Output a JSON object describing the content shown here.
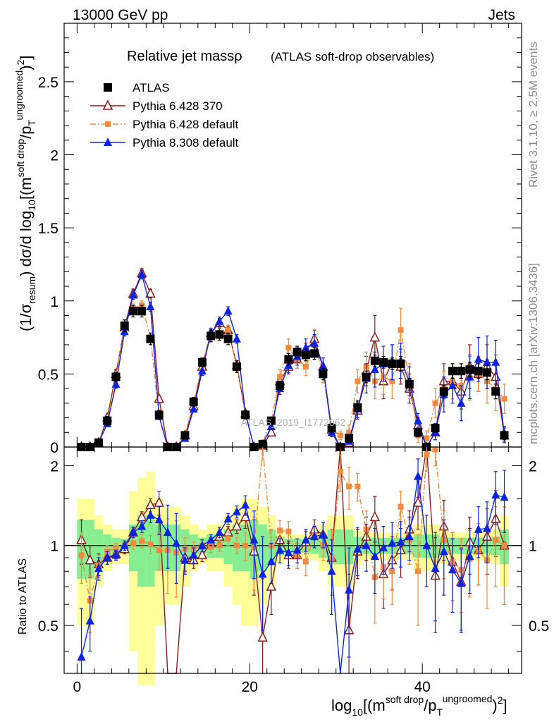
{
  "header": {
    "left": "13000 GeV pp",
    "right": "Jets"
  },
  "side": {
    "rivet": "Rivet 3.1.10, ≥ 2.5M events",
    "mcplots": "mcplots.cern.ch [arXiv:1306.3436]"
  },
  "watermark": "ATLAS_2019_I1772062",
  "chart_data": [
    {
      "type": "line",
      "title": "Relative jet massρ",
      "subtitle": "(ATLAS soft-drop observables)",
      "ylabel": "(1/σresum) dσ/d log10[(m soft drop/pT ungroomed)2]",
      "xlim": [
        -1.5,
        51.5
      ],
      "ylim": [
        0,
        2.9
      ],
      "yticks": [
        0,
        0.5,
        1,
        1.5,
        2,
        2.5
      ],
      "ytick_labels": [
        "0",
        "0.5",
        "1",
        "1.5",
        "2",
        "2.5"
      ],
      "legend_position": "top-left",
      "x": [
        0.5,
        1.5,
        2.5,
        3.5,
        4.5,
        5.5,
        6.5,
        7.5,
        8.5,
        9.5,
        10.5,
        11.5,
        12.5,
        13.5,
        14.5,
        15.5,
        16.5,
        17.5,
        18.5,
        19.5,
        20.5,
        21.5,
        22.5,
        23.5,
        24.5,
        25.5,
        26.5,
        27.5,
        28.5,
        29.5,
        30.5,
        31.5,
        32.5,
        33.5,
        34.5,
        35.5,
        36.5,
        37.5,
        38.5,
        39.5,
        40.5,
        41.5,
        42.5,
        43.5,
        44.5,
        45.5,
        46.5,
        47.5,
        48.5,
        49.5
      ],
      "series": [
        {
          "name": "ATLAS",
          "color": "#000000",
          "marker": "square",
          "values": [
            0.0,
            0.0,
            0.03,
            0.18,
            0.48,
            0.83,
            0.93,
            0.93,
            0.74,
            0.22,
            0.0,
            0.0,
            0.08,
            0.31,
            0.58,
            0.76,
            0.77,
            0.74,
            0.55,
            0.22,
            0.0,
            0.02,
            0.18,
            0.42,
            0.6,
            0.65,
            0.63,
            0.64,
            0.5,
            0.13,
            0.0,
            0.06,
            0.27,
            0.48,
            0.59,
            0.58,
            0.57,
            0.57,
            0.43,
            0.1,
            0.0,
            0.13,
            0.38,
            0.52,
            0.52,
            0.53,
            0.52,
            0.51,
            0.38,
            0.08
          ],
          "errors": [
            0.01,
            0.01,
            0.02,
            0.03,
            0.03,
            0.04,
            0.04,
            0.04,
            0.04,
            0.03,
            0.01,
            0.01,
            0.02,
            0.03,
            0.03,
            0.04,
            0.04,
            0.04,
            0.04,
            0.03,
            0.01,
            0.01,
            0.02,
            0.03,
            0.04,
            0.04,
            0.04,
            0.04,
            0.04,
            0.03,
            0.01,
            0.02,
            0.03,
            0.04,
            0.04,
            0.04,
            0.04,
            0.05,
            0.04,
            0.03,
            0.01,
            0.03,
            0.04,
            0.05,
            0.05,
            0.05,
            0.05,
            0.05,
            0.05,
            0.03
          ]
        },
        {
          "name": "Pythia 6.428 370",
          "color": "#8b1a1a",
          "marker": "open-triangle",
          "values": [
            0.0,
            0.0,
            0.03,
            0.2,
            0.5,
            0.82,
            1.05,
            1.19,
            1.05,
            0.33,
            0.0,
            0.0,
            0.08,
            0.28,
            0.55,
            0.78,
            0.85,
            0.8,
            0.56,
            0.23,
            0.0,
            0.01,
            0.1,
            0.45,
            0.55,
            0.6,
            0.65,
            0.74,
            0.55,
            0.12,
            0.0,
            0.03,
            0.25,
            0.52,
            0.75,
            0.45,
            0.58,
            0.55,
            0.4,
            0.15,
            0.0,
            0.1,
            0.45,
            0.45,
            0.38,
            0.55,
            0.5,
            0.55,
            0.48,
            0.08
          ],
          "errors": [
            0.005,
            0.005,
            0.01,
            0.02,
            0.03,
            0.03,
            0.03,
            0.03,
            0.03,
            0.02,
            0.005,
            0.005,
            0.01,
            0.02,
            0.03,
            0.03,
            0.03,
            0.03,
            0.03,
            0.02,
            0.005,
            0.005,
            0.02,
            0.04,
            0.05,
            0.06,
            0.06,
            0.06,
            0.06,
            0.03,
            0.01,
            0.02,
            0.06,
            0.1,
            0.15,
            0.12,
            0.12,
            0.12,
            0.1,
            0.05,
            0.01,
            0.05,
            0.12,
            0.12,
            0.12,
            0.15,
            0.12,
            0.15,
            0.15,
            0.05
          ]
        },
        {
          "name": "Pythia 6.428 default",
          "color": "#f28c3c",
          "marker": "square",
          "values": [
            0.0,
            0.0,
            0.03,
            0.18,
            0.48,
            0.84,
            0.95,
            0.97,
            0.75,
            0.21,
            0.0,
            0.0,
            0.08,
            0.3,
            0.58,
            0.75,
            0.77,
            0.8,
            0.55,
            0.22,
            0.0,
            0.03,
            0.18,
            0.48,
            0.68,
            0.6,
            0.55,
            0.7,
            0.5,
            0.12,
            0.08,
            0.1,
            0.45,
            0.55,
            0.45,
            0.48,
            0.45,
            0.8,
            0.45,
            0.08,
            0.06,
            0.3,
            0.4,
            0.45,
            0.42,
            0.47,
            0.5,
            0.45,
            0.4,
            0.33
          ],
          "errors": [
            0.005,
            0.005,
            0.01,
            0.02,
            0.03,
            0.03,
            0.03,
            0.03,
            0.03,
            0.02,
            0.005,
            0.005,
            0.01,
            0.02,
            0.03,
            0.03,
            0.03,
            0.03,
            0.03,
            0.02,
            0.005,
            0.005,
            0.02,
            0.05,
            0.06,
            0.06,
            0.06,
            0.06,
            0.06,
            0.04,
            0.03,
            0.05,
            0.08,
            0.1,
            0.12,
            0.12,
            0.12,
            0.15,
            0.12,
            0.05,
            0.05,
            0.1,
            0.12,
            0.12,
            0.12,
            0.15,
            0.12,
            0.15,
            0.15,
            0.1
          ]
        },
        {
          "name": "Pythia 8.308 default",
          "color": "#0b24e0",
          "marker": "triangle",
          "values": [
            0.0,
            0.0,
            0.03,
            0.16,
            0.43,
            0.79,
            1.04,
            1.18,
            0.96,
            0.21,
            0.0,
            0.0,
            0.06,
            0.26,
            0.52,
            0.78,
            0.86,
            0.93,
            0.74,
            0.23,
            0.0,
            0.02,
            0.14,
            0.4,
            0.56,
            0.62,
            0.68,
            0.71,
            0.55,
            0.1,
            0.0,
            0.04,
            0.26,
            0.47,
            0.53,
            0.57,
            0.58,
            0.59,
            0.45,
            0.18,
            0.0,
            0.1,
            0.36,
            0.42,
            0.3,
            0.48,
            0.6,
            0.58,
            0.58,
            0.09
          ],
          "errors": [
            0.005,
            0.005,
            0.01,
            0.02,
            0.03,
            0.03,
            0.03,
            0.03,
            0.03,
            0.02,
            0.005,
            0.005,
            0.01,
            0.02,
            0.03,
            0.03,
            0.03,
            0.03,
            0.03,
            0.02,
            0.005,
            0.005,
            0.02,
            0.04,
            0.05,
            0.06,
            0.06,
            0.06,
            0.06,
            0.03,
            0.01,
            0.02,
            0.06,
            0.1,
            0.12,
            0.12,
            0.12,
            0.12,
            0.1,
            0.05,
            0.01,
            0.05,
            0.12,
            0.12,
            0.12,
            0.15,
            0.15,
            0.18,
            0.15,
            0.05
          ]
        }
      ]
    },
    {
      "type": "line",
      "ylabel": "Ratio to ATLAS",
      "xlabel": "log10[(m soft drop/pT ungroomed)2]",
      "xlim": [
        -1.5,
        51.5
      ],
      "ylim": [
        0.33,
        2.35
      ],
      "yticks": [
        0.5,
        1,
        2
      ],
      "ytick_labels": [
        "0.5",
        "1",
        "2"
      ],
      "xticks": [
        0,
        20,
        40
      ],
      "xtick_labels": [
        "0",
        "20",
        "40"
      ],
      "reference_line": 1,
      "bands": {
        "inner_color": "#86ee90",
        "outer_color": "#ffff99",
        "inner_halfwidth": [
          0.25,
          0.25,
          0.15,
          0.1,
          0.07,
          0.06,
          0.2,
          0.3,
          0.3,
          0.2,
          0.2,
          0.2,
          0.15,
          0.1,
          0.07,
          0.1,
          0.1,
          0.15,
          0.2,
          0.2,
          0.25,
          0.2,
          0.15,
          0.08,
          0.06,
          0.06,
          0.06,
          0.07,
          0.1,
          0.15,
          0.15,
          0.15,
          0.08,
          0.07,
          0.07,
          0.07,
          0.07,
          0.07,
          0.07,
          0.1,
          0.1,
          0.1,
          0.08,
          0.07,
          0.07,
          0.07,
          0.07,
          0.07,
          0.08,
          0.15
        ],
        "outer_halfwidth": [
          0.5,
          0.5,
          0.3,
          0.2,
          0.15,
          0.15,
          0.6,
          0.8,
          0.9,
          0.5,
          0.4,
          0.4,
          0.3,
          0.2,
          0.15,
          0.2,
          0.2,
          0.3,
          0.4,
          0.5,
          0.5,
          0.4,
          0.3,
          0.15,
          0.1,
          0.1,
          0.1,
          0.12,
          0.2,
          0.3,
          0.3,
          0.3,
          0.15,
          0.12,
          0.12,
          0.12,
          0.12,
          0.12,
          0.12,
          0.2,
          0.2,
          0.2,
          0.15,
          0.12,
          0.12,
          0.12,
          0.12,
          0.12,
          0.15,
          0.3
        ]
      },
      "series": [
        {
          "name": "Pythia 6.428 370",
          "color": "#8b1a1a",
          "marker": "open-triangle",
          "values": [
            1.05,
            0.88,
            0.85,
            0.9,
            0.93,
            0.97,
            1.12,
            1.28,
            1.42,
            1.45,
            0.0,
            0.0,
            0.9,
            0.88,
            0.92,
            1.02,
            1.08,
            1.12,
            1.18,
            1.28,
            0.95,
            0.45,
            0.7,
            1.05,
            0.92,
            0.92,
            1.03,
            1.15,
            1.1,
            0.9,
            3.0,
            0.48,
            0.95,
            1.08,
            1.28,
            0.78,
            0.88,
            0.96,
            1.15,
            1.45,
            3.0,
            0.77,
            1.18,
            0.87,
            0.73,
            1.03,
            0.96,
            1.08,
            1.26,
            1.0
          ],
          "errors": [
            0.2,
            0.12,
            0.08,
            0.05,
            0.04,
            0.04,
            0.05,
            0.06,
            0.08,
            0.15,
            0.3,
            0.3,
            0.1,
            0.06,
            0.05,
            0.05,
            0.05,
            0.06,
            0.07,
            0.12,
            0.3,
            0.3,
            0.15,
            0.1,
            0.1,
            0.1,
            0.1,
            0.1,
            0.12,
            0.25,
            0.3,
            0.3,
            0.2,
            0.2,
            0.25,
            0.2,
            0.2,
            0.2,
            0.2,
            0.3,
            0.3,
            0.3,
            0.3,
            0.25,
            0.25,
            0.25,
            0.25,
            0.3,
            0.35,
            0.4
          ]
        },
        {
          "name": "Pythia 6.428 default",
          "color": "#f28c3c",
          "marker": "square",
          "values": [
            0.92,
            0.62,
            0.84,
            0.95,
            0.98,
            1.0,
            1.02,
            1.04,
            1.01,
            0.96,
            0.96,
            0.94,
            0.97,
            0.97,
            1.0,
            0.99,
            1.0,
            1.06,
            1.0,
            1.0,
            0.98,
            2.4,
            1.0,
            1.14,
            1.13,
            0.92,
            0.87,
            1.09,
            1.0,
            0.9,
            1.9,
            1.67,
            1.67,
            1.15,
            0.76,
            0.83,
            0.8,
            1.4,
            1.05,
            0.8,
            2.2,
            2.3,
            1.05,
            0.87,
            0.81,
            0.89,
            0.96,
            0.88,
            1.05,
            1.0
          ],
          "errors": [
            0.2,
            0.15,
            0.08,
            0.05,
            0.04,
            0.04,
            0.05,
            0.06,
            0.08,
            0.15,
            0.3,
            0.3,
            0.1,
            0.06,
            0.05,
            0.05,
            0.05,
            0.06,
            0.07,
            0.12,
            0.3,
            0.3,
            0.15,
            0.1,
            0.1,
            0.1,
            0.1,
            0.1,
            0.12,
            0.25,
            0.3,
            0.3,
            0.2,
            0.2,
            0.25,
            0.2,
            0.2,
            0.2,
            0.2,
            0.3,
            0.3,
            0.3,
            0.3,
            0.25,
            0.25,
            0.25,
            0.25,
            0.3,
            0.35,
            0.4
          ]
        },
        {
          "name": "Pythia 8.308 default",
          "color": "#0b24e0",
          "marker": "triangle",
          "values": [
            0.38,
            0.52,
            0.82,
            0.9,
            0.92,
            1.0,
            1.12,
            1.18,
            1.3,
            1.25,
            1.12,
            1.02,
            0.88,
            0.92,
            1.0,
            1.05,
            1.12,
            1.26,
            1.34,
            1.42,
            1.05,
            0.78,
            0.87,
            0.96,
            0.94,
            0.96,
            1.05,
            1.08,
            1.1,
            0.8,
            0.0,
            0.68,
            0.97,
            1.0,
            0.91,
            0.98,
            1.02,
            1.03,
            1.08,
            1.82,
            1.0,
            0.82,
            0.95,
            0.81,
            0.72,
            0.91,
            1.15,
            1.16,
            1.55,
            1.52
          ],
          "errors": [
            0.2,
            0.12,
            0.08,
            0.05,
            0.04,
            0.04,
            0.05,
            0.06,
            0.08,
            0.15,
            0.3,
            0.3,
            0.1,
            0.06,
            0.05,
            0.05,
            0.05,
            0.06,
            0.07,
            0.12,
            0.3,
            0.3,
            0.15,
            0.1,
            0.1,
            0.1,
            0.1,
            0.1,
            0.12,
            0.25,
            0.3,
            0.3,
            0.2,
            0.2,
            0.25,
            0.2,
            0.2,
            0.2,
            0.2,
            0.3,
            0.3,
            0.3,
            0.3,
            0.25,
            0.25,
            0.25,
            0.25,
            0.3,
            0.35,
            0.4
          ]
        }
      ]
    }
  ]
}
